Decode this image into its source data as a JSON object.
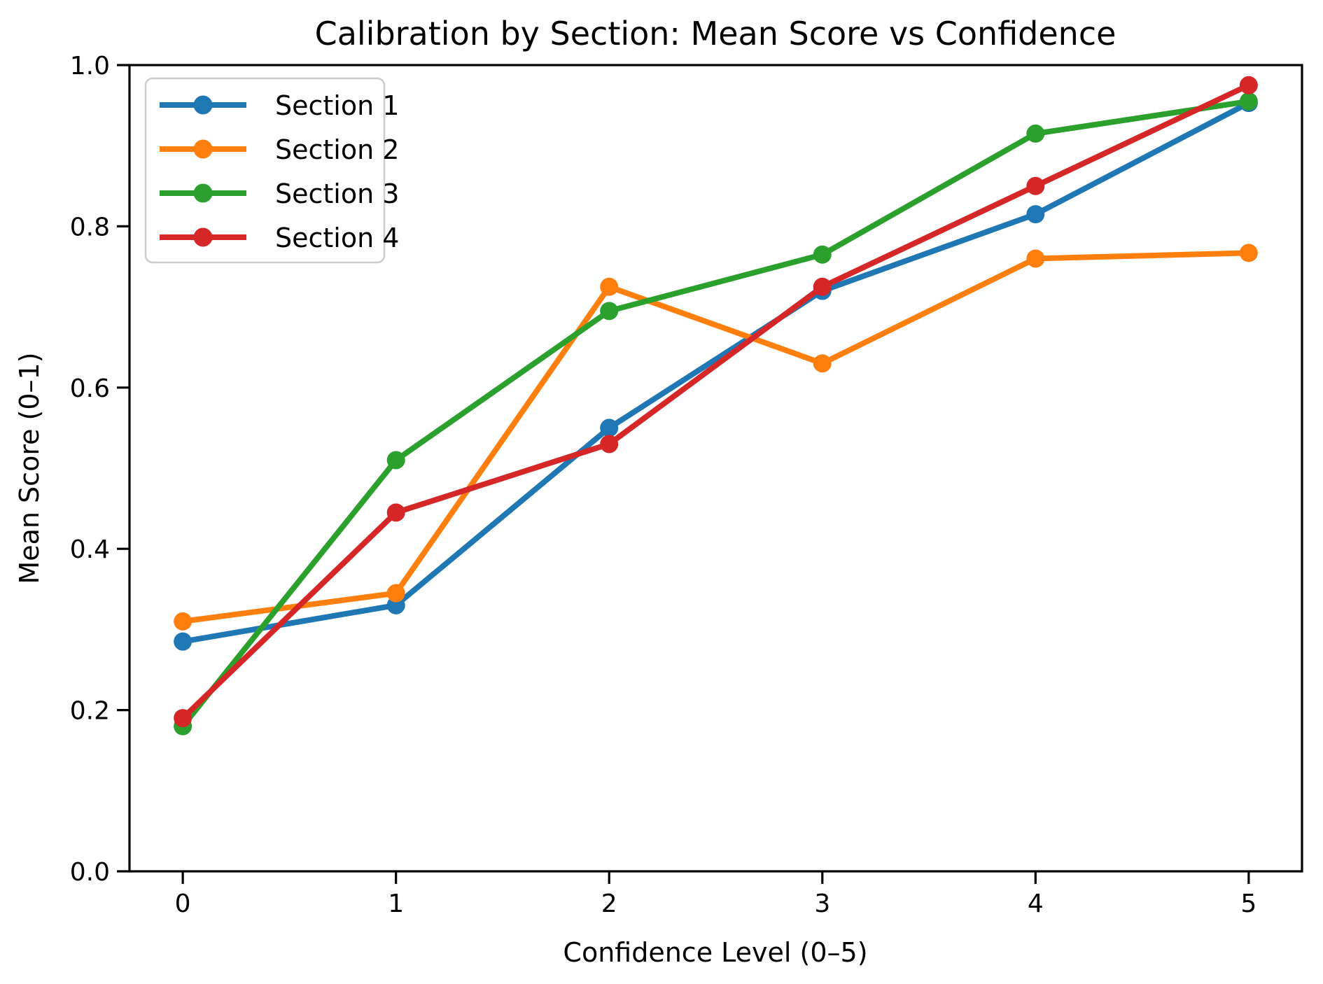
{
  "chart_data": {
    "type": "line",
    "title": "Calibration by Section: Mean Score vs Confidence",
    "xlabel": "Confidence Level (0–5)",
    "ylabel": "Mean Score (0–1)",
    "x": [
      0,
      1,
      2,
      3,
      4,
      5
    ],
    "xtick_labels": [
      "0",
      "1",
      "2",
      "3",
      "4",
      "5"
    ],
    "yticks": [
      0.0,
      0.2,
      0.4,
      0.6,
      0.8,
      1.0
    ],
    "ytick_labels": [
      "0.0",
      "0.2",
      "0.4",
      "0.6",
      "0.8",
      "1.0"
    ],
    "xlim": [
      -0.25,
      5.25
    ],
    "ylim": [
      0.0,
      1.0
    ],
    "grid": false,
    "legend_position": "upper left",
    "marker": "circle",
    "series": [
      {
        "name": "Section 1",
        "color": "#1f77b4",
        "values": [
          0.285,
          0.33,
          0.55,
          0.72,
          0.815,
          0.953
        ]
      },
      {
        "name": "Section 2",
        "color": "#ff7f0e",
        "values": [
          0.31,
          0.345,
          0.725,
          0.63,
          0.76,
          0.767
        ]
      },
      {
        "name": "Section 3",
        "color": "#2ca02c",
        "values": [
          0.18,
          0.51,
          0.695,
          0.765,
          0.915,
          0.955
        ]
      },
      {
        "name": "Section 4",
        "color": "#d62728",
        "values": [
          0.19,
          0.445,
          0.53,
          0.725,
          0.85,
          0.975
        ]
      }
    ],
    "legend_border_color": "#cccccc",
    "axis_color": "#000000"
  }
}
